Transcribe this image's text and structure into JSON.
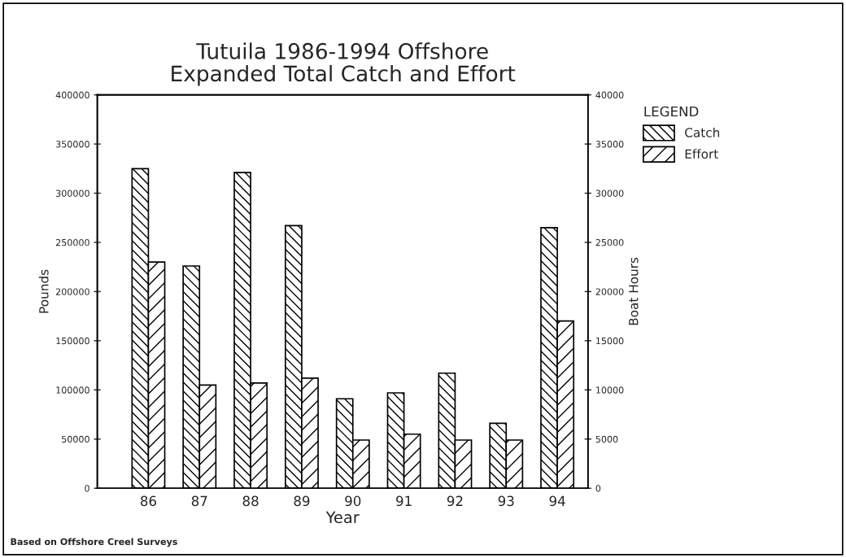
{
  "chart_data": {
    "type": "bar",
    "title": "Tutuila 1986-1994 Offshore\nExpanded Total Catch and Effort",
    "categories": [
      "86",
      "87",
      "88",
      "89",
      "90",
      "91",
      "92",
      "93",
      "94"
    ],
    "xlabel": "Year",
    "ylabel": "Pounds",
    "y2label": "Boat Hours",
    "legend_title": "LEGEND",
    "series": [
      {
        "name": "Catch",
        "color": "#000000",
        "values": [
          325000,
          226000,
          321000,
          267000,
          91000,
          97000,
          117000,
          66000,
          265000
        ]
      },
      {
        "name": "Effort",
        "color": "#000000",
        "axis": "y2",
        "values": [
          23000,
          10500,
          10700,
          11200,
          4900,
          5500,
          4900,
          4900,
          17000
        ]
      }
    ],
    "ylim": [
      0,
      400000
    ],
    "yticks": [
      0,
      50000,
      100000,
      150000,
      200000,
      250000,
      300000,
      350000,
      400000
    ],
    "y2lim": [
      0,
      40000
    ],
    "y2ticks": [
      0,
      5000,
      10000,
      15000,
      20000,
      25000,
      30000,
      35000,
      40000
    ],
    "grid": false,
    "legend": "top right",
    "annotations": [
      "Based on Offshore Creel Surveys"
    ]
  }
}
